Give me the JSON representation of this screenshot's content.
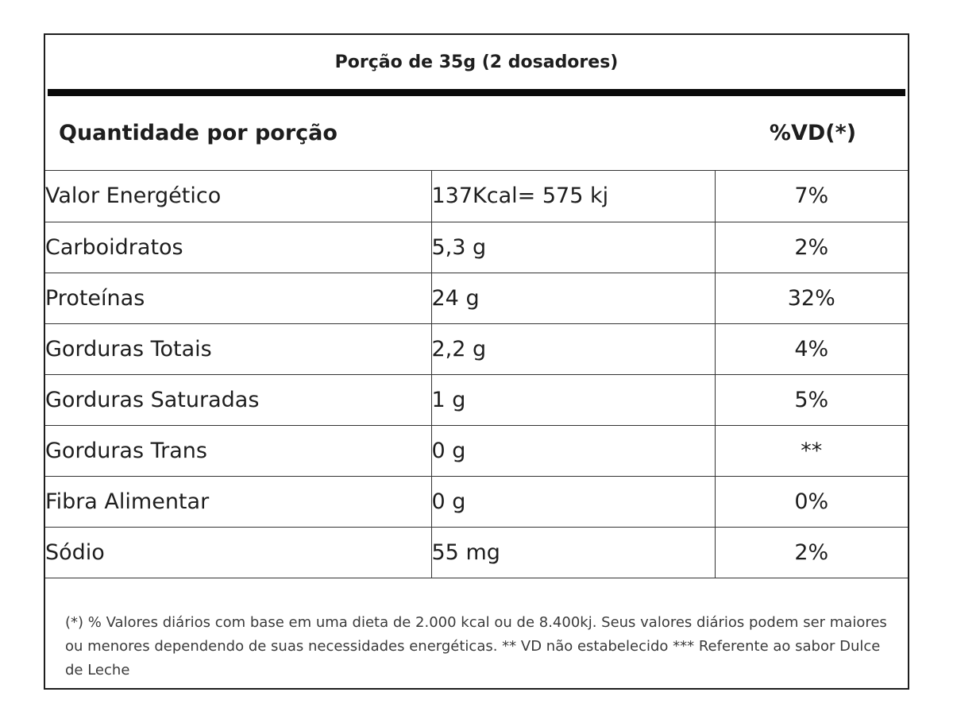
{
  "serving": "Porção de 35g (2 dosadores)",
  "header": {
    "quantity_label": "Quantidade por porção",
    "dv_label": "%VD(*)"
  },
  "rows": [
    {
      "name": "Valor Energético",
      "amount": "137Kcal= 575 kj",
      "dv": "7%"
    },
    {
      "name": "Carboidratos",
      "amount": "5,3 g",
      "dv": "2%"
    },
    {
      "name": "Proteínas",
      "amount": "24 g",
      "dv": "32%"
    },
    {
      "name": "Gorduras Totais",
      "amount": "2,2 g",
      "dv": "4%"
    },
    {
      "name": "Gorduras Saturadas",
      "amount": "1 g",
      "dv": "5%"
    },
    {
      "name": "Gorduras Trans",
      "amount": "0 g",
      "dv": "**"
    },
    {
      "name": "Fibra Alimentar",
      "amount": "0 g",
      "dv": "0%"
    },
    {
      "name": "Sódio",
      "amount": "55 mg",
      "dv": "2%"
    }
  ],
  "footnote": "(*) % Valores diários com base em uma dieta de 2.000 kcal ou de 8.400kj. Seus valores diários podem ser maiores ou menores dependendo de suas necessidades energéticas. ** VD não estabelecido *** Referente ao sabor Dulce de Leche"
}
